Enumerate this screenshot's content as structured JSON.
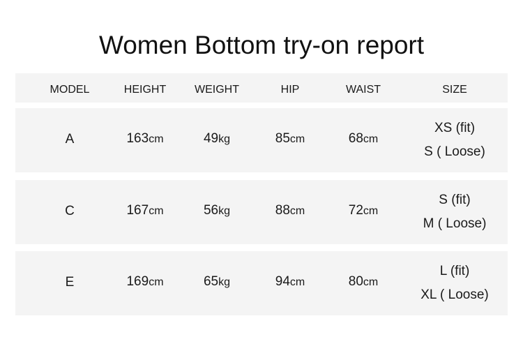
{
  "title": "Women Bottom try-on report",
  "headers": [
    "MODEL",
    "HEIGHT",
    "WEIGHT",
    "HIP",
    "WAIST",
    "SIZE"
  ],
  "rows": [
    {
      "model": "A",
      "height": "163",
      "weight": "49",
      "hip": "85",
      "waist": "68",
      "size_fit": "XS (fit)",
      "size_loose": "S ( Loose)"
    },
    {
      "model": "C",
      "height": "167",
      "weight": "56",
      "hip": "88",
      "waist": "72",
      "size_fit": "S (fit)",
      "size_loose": "M ( Loose)"
    },
    {
      "model": "E",
      "height": "169",
      "weight": "65",
      "hip": "94",
      "waist": "80",
      "size_fit": "L (fit)",
      "size_loose": "XL ( Loose)"
    }
  ],
  "units": {
    "cm": "cm",
    "kg": "kg"
  }
}
